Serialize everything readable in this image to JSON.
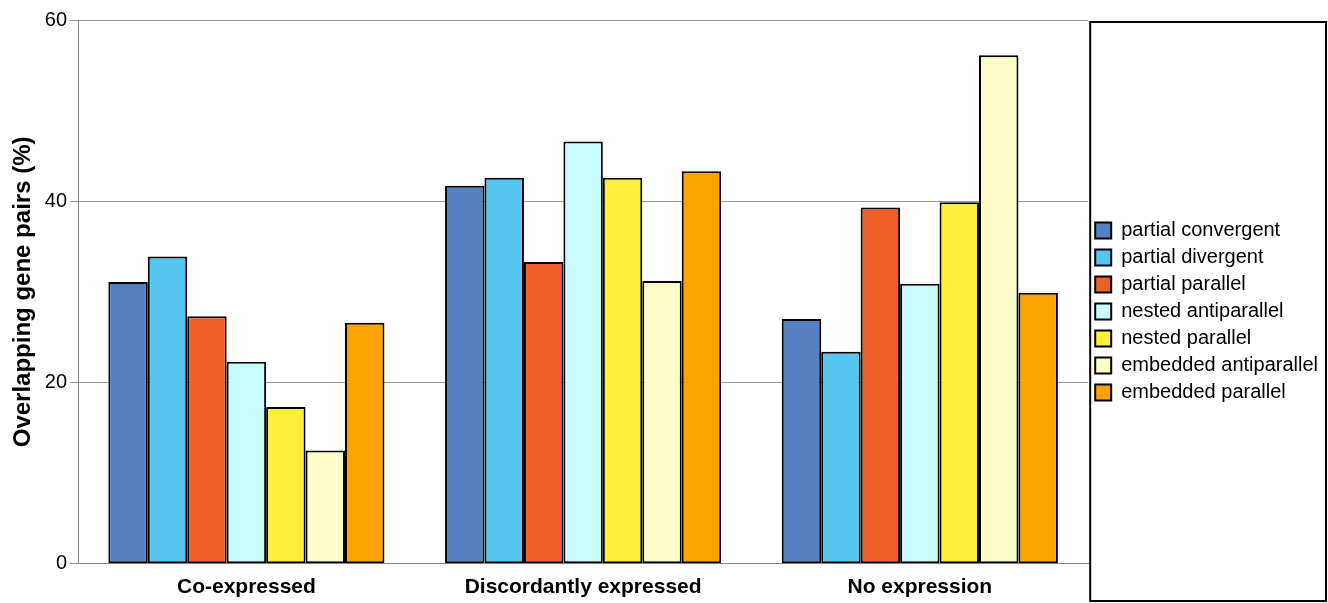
{
  "chart_data": {
    "type": "bar",
    "ylabel": "Overlapping gene pairs (%)",
    "categories": [
      "Co-expressed",
      "Discordantly expressed",
      "No expression"
    ],
    "series": [
      {
        "name": "partial convergent",
        "color": "#5580c2",
        "values": [
          31.1,
          41.7,
          27.0
        ]
      },
      {
        "name": "partial divergent",
        "color": "#55c5f2",
        "values": [
          33.9,
          42.6,
          23.4
        ]
      },
      {
        "name": "partial parallel",
        "color": "#ef6029",
        "values": [
          27.3,
          33.3,
          39.3
        ]
      },
      {
        "name": "nested antiparallel",
        "color": "#c6fcfd",
        "values": [
          22.3,
          46.6,
          30.9
        ]
      },
      {
        "name": "nested parallel",
        "color": "#fdef3a",
        "values": [
          17.3,
          42.6,
          39.9
        ]
      },
      {
        "name": "embedded antiparallel",
        "color": "#fefcc8",
        "values": [
          12.5,
          31.2,
          56.1
        ]
      },
      {
        "name": "embedded parallel",
        "color": "#fca201",
        "values": [
          26.6,
          43.3,
          29.9
        ]
      }
    ],
    "ylim": [
      0,
      60
    ],
    "yticks": [
      0,
      20,
      40,
      60
    ],
    "grid": "y",
    "legend": "right"
  }
}
